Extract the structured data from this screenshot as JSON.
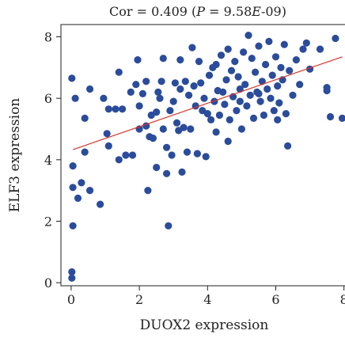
{
  "chart_data": {
    "type": "scatter",
    "title_parts": {
      "prefix": "Cor = 0.409 (",
      "p_symbol": "P",
      "equals": " = 9.58",
      "e_symbol": "E",
      "suffix": "-09)"
    },
    "xlabel": "DUOX2 expression",
    "ylabel": "ELF3 expression",
    "xlim": [
      -0.3,
      8.1
    ],
    "ylim": [
      -0.1,
      8.4
    ],
    "xticks": [
      0,
      2,
      4,
      6,
      8
    ],
    "yticks": [
      0,
      2,
      4,
      6,
      8
    ],
    "point_color": "#2b4c9b",
    "line_color": "#d9342b",
    "regression": {
      "x": [
        0.05,
        7.95
      ],
      "y": [
        4.33,
        7.35
      ]
    },
    "points": [
      [
        0.02,
        0.15
      ],
      [
        0.02,
        0.35
      ],
      [
        0.05,
        1.85
      ],
      [
        0.05,
        3.1
      ],
      [
        0.05,
        3.8
      ],
      [
        0.02,
        6.65
      ],
      [
        0.12,
        6.0
      ],
      [
        0.2,
        2.75
      ],
      [
        0.3,
        3.25
      ],
      [
        0.4,
        4.25
      ],
      [
        0.4,
        5.35
      ],
      [
        0.55,
        3.0
      ],
      [
        0.55,
        6.3
      ],
      [
        0.85,
        2.55
      ],
      [
        0.95,
        6.0
      ],
      [
        1.05,
        4.85
      ],
      [
        1.1,
        4.45
      ],
      [
        1.1,
        5.65
      ],
      [
        1.3,
        5.65
      ],
      [
        1.4,
        4.0
      ],
      [
        1.4,
        6.85
      ],
      [
        1.5,
        5.65
      ],
      [
        1.6,
        4.15
      ],
      [
        1.75,
        6.2
      ],
      [
        1.8,
        4.15
      ],
      [
        1.9,
        6.45
      ],
      [
        1.95,
        7.25
      ],
      [
        2.0,
        5.0
      ],
      [
        2.0,
        5.75
      ],
      [
        2.1,
        6.15
      ],
      [
        2.2,
        5.1
      ],
      [
        2.2,
        6.55
      ],
      [
        2.25,
        3.0
      ],
      [
        2.3,
        4.75
      ],
      [
        2.35,
        5.45
      ],
      [
        2.4,
        4.7
      ],
      [
        2.5,
        3.75
      ],
      [
        2.5,
        5.55
      ],
      [
        2.55,
        6.2
      ],
      [
        2.6,
        6.0
      ],
      [
        2.65,
        6.55
      ],
      [
        2.7,
        5.0
      ],
      [
        2.7,
        7.3
      ],
      [
        2.8,
        3.55
      ],
      [
        2.8,
        4.4
      ],
      [
        2.85,
        1.85
      ],
      [
        2.9,
        5.6
      ],
      [
        2.95,
        4.15
      ],
      [
        3.0,
        5.9
      ],
      [
        3.05,
        6.5
      ],
      [
        3.1,
        5.2
      ],
      [
        3.15,
        4.95
      ],
      [
        3.2,
        6.3
      ],
      [
        3.25,
        3.6
      ],
      [
        3.3,
        5.05
      ],
      [
        3.35,
        6.55
      ],
      [
        3.4,
        4.25
      ],
      [
        3.45,
        6.1
      ],
      [
        3.5,
        5.0
      ],
      [
        3.55,
        7.65
      ],
      [
        3.6,
        6.4
      ],
      [
        3.65,
        5.75
      ],
      [
        3.7,
        4.2
      ],
      [
        3.75,
        7.2
      ],
      [
        3.8,
        6.5
      ],
      [
        3.85,
        5.6
      ],
      [
        3.9,
        6.0
      ],
      [
        3.95,
        4.1
      ],
      [
        4.0,
        5.5
      ],
      [
        4.05,
        6.75
      ],
      [
        4.1,
        5.3
      ],
      [
        4.15,
        7.0
      ],
      [
        4.2,
        5.9
      ],
      [
        4.25,
        4.9
      ],
      [
        4.3,
        6.25
      ],
      [
        4.35,
        5.45
      ],
      [
        4.4,
        7.4
      ],
      [
        4.45,
        6.2
      ],
      [
        4.5,
        5.8
      ],
      [
        4.55,
        6.6
      ],
      [
        4.6,
        4.6
      ],
      [
        4.65,
        5.3
      ],
      [
        4.7,
        6.9
      ],
      [
        4.75,
        6.05
      ],
      [
        4.8,
        7.2
      ],
      [
        4.85,
        5.6
      ],
      [
        4.9,
        6.7
      ],
      [
        4.95,
        6.3
      ],
      [
        5.0,
        5.0
      ],
      [
        5.05,
        7.5
      ],
      [
        5.1,
        6.45
      ],
      [
        5.15,
        5.75
      ],
      [
        5.2,
        8.05
      ],
      [
        5.25,
        6.1
      ],
      [
        5.3,
        7.3
      ],
      [
        5.35,
        5.35
      ],
      [
        5.4,
        6.85
      ],
      [
        5.45,
        6.2
      ],
      [
        5.5,
        7.7
      ],
      [
        5.55,
        5.9
      ],
      [
        5.6,
        6.55
      ],
      [
        5.65,
        5.45
      ],
      [
        5.7,
        7.1
      ],
      [
        5.75,
        6.3
      ],
      [
        5.8,
        7.85
      ],
      [
        5.85,
        6.0
      ],
      [
        5.9,
        6.75
      ],
      [
        5.95,
        5.6
      ],
      [
        6.0,
        7.35
      ],
      [
        6.05,
        6.4
      ],
      [
        6.1,
        5.85
      ],
      [
        6.15,
        7.0
      ],
      [
        6.2,
        6.6
      ],
      [
        6.25,
        7.75
      ],
      [
        6.3,
        5.5
      ],
      [
        6.35,
        4.45
      ],
      [
        6.4,
        6.9
      ],
      [
        6.5,
        6.1
      ],
      [
        6.6,
        7.25
      ],
      [
        6.7,
        6.45
      ],
      [
        6.8,
        7.6
      ],
      [
        6.9,
        7.8
      ],
      [
        7.0,
        6.95
      ],
      [
        7.3,
        7.6
      ],
      [
        7.5,
        6.25
      ],
      [
        7.5,
        6.35
      ],
      [
        7.6,
        5.4
      ],
      [
        7.75,
        7.95
      ],
      [
        7.95,
        5.35
      ],
      [
        4.6,
        7.6
      ],
      [
        5.5,
        6.15
      ],
      [
        6.05,
        5.3
      ],
      [
        4.95,
        5.9
      ],
      [
        3.2,
        7.25
      ],
      [
        4.25,
        7.1
      ]
    ]
  }
}
